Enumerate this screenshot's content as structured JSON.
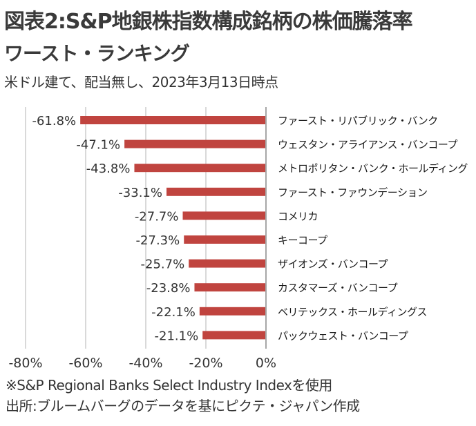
{
  "header": {
    "title_line1": "図表2:S&P地銀株指数構成銘柄の株価騰落率",
    "title_line2": "ワースト・ランキング",
    "subtitle": "米ドル建て、配当無し、2023年3月13日時点"
  },
  "footer": {
    "note": "※S&P Regional Banks Select Industry Indexを使用",
    "source": "出所:ブルームバーグのデータを基にピクテ・ジャパン作成"
  },
  "colors": {
    "bar": "#C0443F",
    "grid": "#D9D9D9",
    "axis": "#A6A6A6",
    "text": "#333333"
  },
  "chart_data": {
    "type": "bar",
    "orientation": "horizontal",
    "title": "図表2:S&P地銀株指数構成銘柄の株価騰落率 ワースト・ランキング",
    "subtitle": "米ドル建て、配当無し、2023年3月13日時点",
    "xlabel": "",
    "ylabel": "",
    "categories": [
      "ファースト・リパブリック・バンク",
      "ウェスタン・アライアンス・バンコープ",
      "メトロポリタン・バンク・ホールディング",
      "ファースト・ファウンデーション",
      "コメリカ",
      "キーコープ",
      "ザイオンズ・バンコープ",
      "カスタマーズ・バンコープ",
      "ベリテックス・ホールディングス",
      "パックウェスト・バンコープ"
    ],
    "values": [
      -61.8,
      -47.1,
      -43.8,
      -33.1,
      -27.7,
      -27.3,
      -25.7,
      -23.8,
      -22.1,
      -21.1
    ],
    "data_labels": [
      "-61.8%",
      "-47.1%",
      "-43.8%",
      "-33.1%",
      "-27.7%",
      "-27.3%",
      "-25.7%",
      "-23.8%",
      "-22.1%",
      "-21.1%"
    ],
    "xlim": [
      -80,
      0
    ],
    "xticks": [
      -80,
      -60,
      -40,
      -20,
      0
    ],
    "xtick_labels": [
      "-80%",
      "-60%",
      "-40%",
      "-20%",
      "0%"
    ],
    "grid": true,
    "legend": "none",
    "category_label_position": "right"
  }
}
